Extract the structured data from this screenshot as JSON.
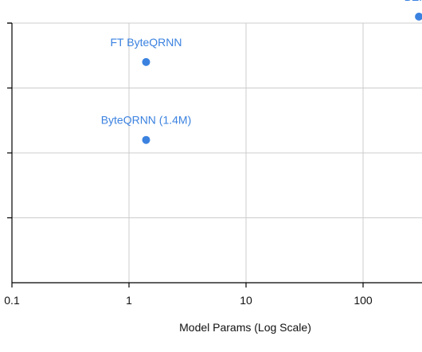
{
  "chart_data": {
    "type": "scatter",
    "title": "",
    "xlabel": "Model Params (Log Scale)",
    "ylabel": "",
    "x_scale": "log",
    "x_ticks": [
      0.1,
      1,
      10,
      100
    ],
    "x_tick_labels": [
      "0.1",
      "1",
      "10",
      "100"
    ],
    "grid": true,
    "point_color": "#3b82e0",
    "points": [
      {
        "label": "FT ByteQRNN",
        "x": 1.4,
        "y": 3.4
      },
      {
        "label": "ByteQRNN (1.4M)",
        "x": 1.4,
        "y": 2.2
      },
      {
        "label": "BERT",
        "x": 300,
        "y": 4.1
      }
    ]
  }
}
